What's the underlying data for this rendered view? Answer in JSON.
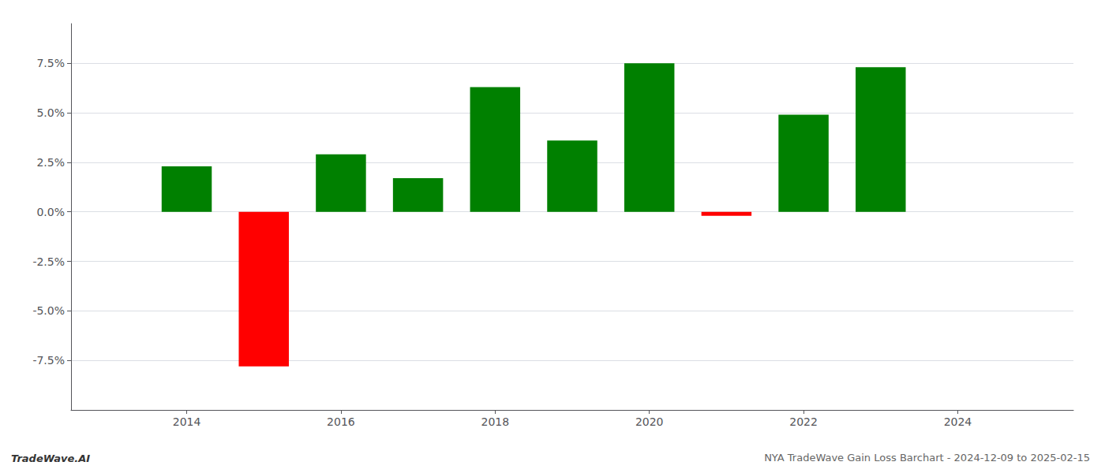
{
  "chart_data": {
    "type": "bar",
    "title": "NYA TradeWave Gain Loss Barchart - 2024-12-09 to 2025-02-15",
    "annotations": [
      "TradeWave.AI"
    ],
    "x": [
      2014,
      2015,
      2016,
      2017,
      2018,
      2019,
      2020,
      2021,
      2022,
      2023
    ],
    "values": [
      0.023,
      -0.078,
      0.029,
      0.017,
      0.063,
      0.036,
      0.075,
      -0.002,
      0.049,
      0.073
    ],
    "colors": [
      "#008000",
      "#ff0000",
      "#008000",
      "#008000",
      "#008000",
      "#008000",
      "#008000",
      "#ff0000",
      "#008000",
      "#008000"
    ],
    "xlim": [
      2012.5,
      2025.5
    ],
    "xticks": [
      2014,
      2016,
      2018,
      2020,
      2022,
      2024
    ],
    "ylim": [
      -0.1,
      0.095
    ],
    "yticks": [
      {
        "value": -0.075,
        "label": "-7.5%"
      },
      {
        "value": -0.05,
        "label": "-5.0%"
      },
      {
        "value": -0.025,
        "label": "-2.5%"
      },
      {
        "value": 0.0,
        "label": "0.0%"
      },
      {
        "value": 0.025,
        "label": "2.5%"
      },
      {
        "value": 0.05,
        "label": "5.0%"
      },
      {
        "value": 0.075,
        "label": "7.5%"
      }
    ],
    "grid": true
  }
}
